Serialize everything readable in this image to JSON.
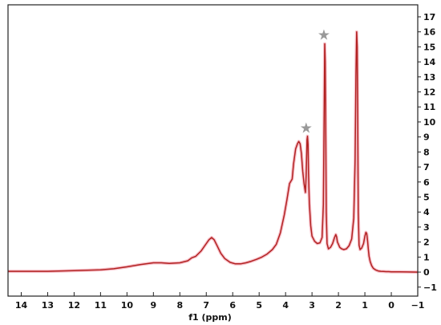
{
  "chart_data": {
    "type": "line",
    "title": "",
    "xlabel": "f1 (ppm)",
    "ylabel": "",
    "x_reversed": true,
    "xlim": [
      14.5,
      -1.0
    ],
    "ylim": [
      -1.6,
      17.8
    ],
    "x_ticks": [
      14,
      13,
      12,
      11,
      10,
      9,
      8,
      7,
      6,
      5,
      4,
      3,
      2,
      1,
      0,
      -1
    ],
    "x_tick_labels": [
      "14",
      "13",
      "12",
      "11",
      "10",
      "9",
      "8",
      "7",
      "6",
      "5",
      "4",
      "3",
      "2",
      "1",
      "0",
      "−1"
    ],
    "y_ticks": [
      -1,
      0,
      1,
      2,
      3,
      4,
      5,
      6,
      7,
      8,
      9,
      10,
      11,
      12,
      13,
      14,
      15,
      16,
      17
    ],
    "y_tick_labels": [
      "−1",
      "0",
      "1",
      "2",
      "3",
      "4",
      "5",
      "6",
      "7",
      "8",
      "9",
      "10",
      "11",
      "12",
      "13",
      "14",
      "15",
      "16",
      "17"
    ],
    "y_axis_side": "right",
    "grid": false,
    "series": [
      {
        "color": "#b22222",
        "glow_color": "#f4a6b4",
        "x": [
          14.5,
          13.0,
          12.0,
          11.0,
          10.5,
          10.0,
          9.5,
          9.0,
          8.7,
          8.4,
          8.0,
          7.7,
          7.55,
          7.4,
          7.2,
          7.0,
          6.9,
          6.8,
          6.7,
          6.6,
          6.45,
          6.3,
          6.1,
          5.9,
          5.7,
          5.5,
          5.3,
          5.1,
          4.9,
          4.7,
          4.5,
          4.35,
          4.2,
          4.05,
          3.95,
          3.85,
          3.75,
          3.7,
          3.62,
          3.55,
          3.5,
          3.45,
          3.4,
          3.35,
          3.3,
          3.25,
          3.22,
          3.19,
          3.17,
          3.15,
          3.13,
          3.1,
          3.05,
          3.0,
          2.9,
          2.8,
          2.7,
          2.62,
          2.57,
          2.54,
          2.52,
          2.5,
          2.48,
          2.46,
          2.43,
          2.38,
          2.3,
          2.22,
          2.15,
          2.1,
          2.07,
          2.04,
          2.0,
          1.95,
          1.88,
          1.8,
          1.7,
          1.6,
          1.5,
          1.42,
          1.37,
          1.34,
          1.31,
          1.29,
          1.27,
          1.25,
          1.22,
          1.18,
          1.12,
          1.05,
          1.0,
          0.96,
          0.93,
          0.9,
          0.87,
          0.84,
          0.8,
          0.74,
          0.68,
          0.6,
          0.5,
          0.4,
          0.3,
          0.2,
          0.1,
          0.0,
          -0.3,
          -0.6,
          -1.0
        ],
        "y": [
          0.05,
          0.05,
          0.1,
          0.15,
          0.22,
          0.35,
          0.5,
          0.62,
          0.62,
          0.58,
          0.62,
          0.75,
          0.95,
          1.05,
          1.4,
          1.9,
          2.15,
          2.3,
          2.15,
          1.8,
          1.25,
          0.9,
          0.65,
          0.55,
          0.55,
          0.62,
          0.72,
          0.85,
          1.0,
          1.2,
          1.5,
          1.85,
          2.6,
          3.8,
          4.8,
          5.9,
          6.2,
          7.2,
          8.2,
          8.55,
          8.7,
          8.55,
          7.9,
          6.7,
          5.9,
          5.3,
          6.5,
          8.8,
          9.05,
          8.5,
          6.5,
          4.6,
          3.1,
          2.4,
          2.05,
          1.9,
          1.95,
          2.3,
          4.5,
          10.5,
          15.2,
          14.0,
          9.0,
          4.0,
          1.9,
          1.55,
          1.65,
          1.9,
          2.3,
          2.5,
          2.35,
          2.0,
          1.85,
          1.65,
          1.55,
          1.5,
          1.55,
          1.75,
          2.2,
          3.6,
          7.5,
          13.0,
          16.0,
          15.0,
          9.5,
          4.0,
          1.8,
          1.5,
          1.6,
          1.9,
          2.4,
          2.65,
          2.55,
          2.1,
          1.5,
          1.05,
          0.7,
          0.42,
          0.25,
          0.15,
          0.08,
          0.05,
          0.04,
          0.03,
          0.03,
          0.02,
          0.02,
          0.01,
          0.0
        ]
      }
    ],
    "annotations": [
      {
        "symbol": "★",
        "x": 3.22,
        "y": 9.6,
        "color": "#999999"
      },
      {
        "symbol": "★",
        "x": 2.55,
        "y": 15.8,
        "color": "#999999"
      }
    ]
  }
}
